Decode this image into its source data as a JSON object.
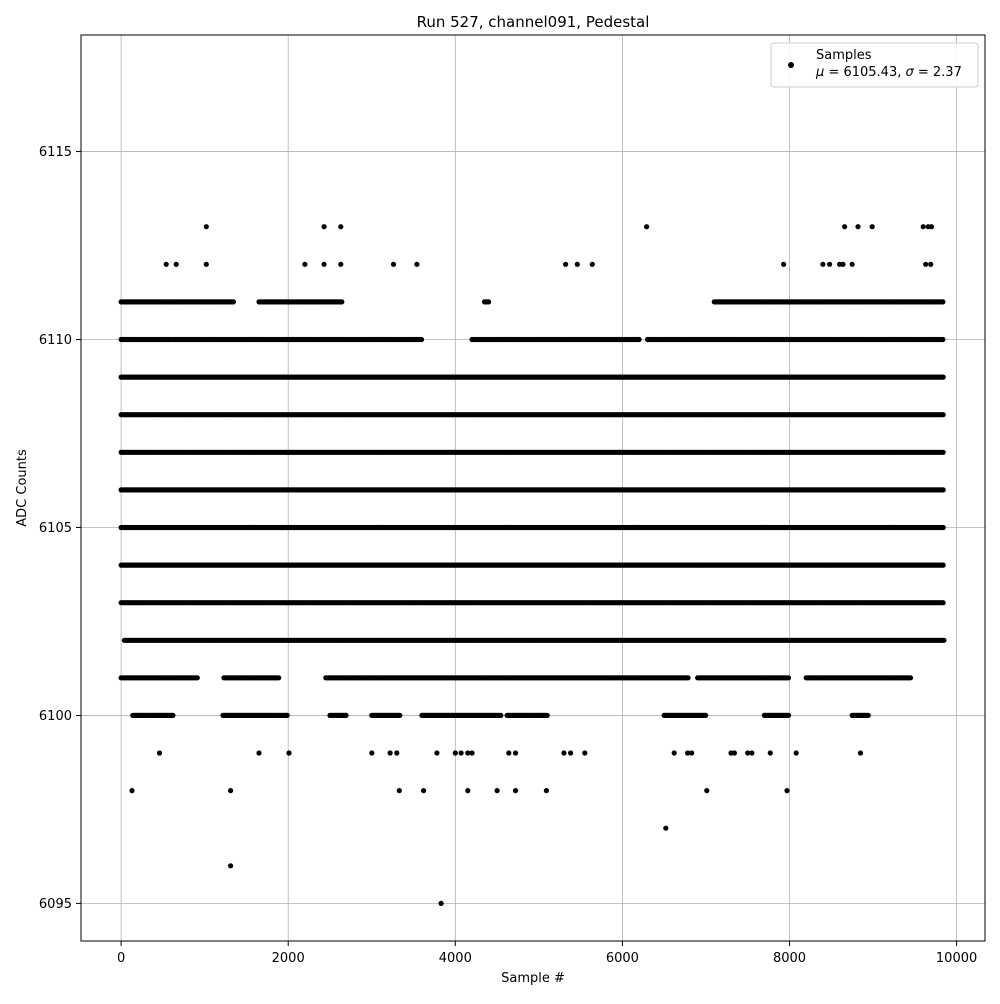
{
  "chart_data": {
    "type": "scatter",
    "title": "Run 527, channel091, Pedestal",
    "xlabel": "Sample #",
    "ylabel": "ADC Counts",
    "xlim": [
      -480,
      10340
    ],
    "ylim": [
      6094,
      6118.1
    ],
    "xticks": [
      0,
      2000,
      4000,
      6000,
      8000,
      10000
    ],
    "xtick_labels": [
      "0",
      "2000",
      "4000",
      "6000",
      "8000",
      "10000"
    ],
    "yticks": [
      6095,
      6100,
      6105,
      6110,
      6115
    ],
    "ytick_labels": [
      "6095",
      "6100",
      "6105",
      "6110",
      "6115"
    ],
    "grid": true,
    "legend_position": "top-right",
    "legend": {
      "entry": "Samples",
      "stats_mu": "6105.43",
      "stats_sigma": "2.37"
    },
    "marker_color": "#000000",
    "series": [
      {
        "name": "Samples",
        "sample_count": 10000,
        "sample_x_range": [
          0,
          9850
        ],
        "level_coverage": [
          {
            "y": 6103,
            "x_ranges": [
              [
                0,
                9850
              ]
            ]
          },
          {
            "y": 6104,
            "x_ranges": [
              [
                0,
                9850
              ]
            ]
          },
          {
            "y": 6105,
            "x_ranges": [
              [
                0,
                9850
              ]
            ]
          },
          {
            "y": 6106,
            "x_ranges": [
              [
                0,
                9850
              ]
            ]
          },
          {
            "y": 6107,
            "x_ranges": [
              [
                0,
                9850
              ]
            ]
          },
          {
            "y": 6108,
            "x_ranges": [
              [
                0,
                9850
              ]
            ]
          },
          {
            "y": 6102,
            "x_ranges": [
              [
                40,
                9850
              ]
            ]
          },
          {
            "y": 6109,
            "x_ranges": [
              [
                0,
                9850
              ]
            ]
          },
          {
            "y": 6101,
            "x_ranges": [
              [
                0,
                920
              ],
              [
                1230,
                1900
              ],
              [
                2450,
                6800
              ],
              [
                6900,
                8000
              ],
              [
                8200,
                9450
              ]
            ]
          },
          {
            "y": 6110,
            "x_ranges": [
              [
                0,
                600
              ],
              [
                620,
                3600
              ],
              [
                4200,
                6200
              ],
              [
                6300,
                9850
              ]
            ]
          },
          {
            "y": 6100,
            "x_ranges": [
              [
                140,
                620
              ],
              [
                1220,
                2000
              ],
              [
                2500,
                2700
              ],
              [
                3000,
                3350
              ],
              [
                3600,
                4550
              ],
              [
                4620,
                5100
              ],
              [
                6500,
                7000
              ],
              [
                7700,
                8000
              ],
              [
                8750,
                8950
              ]
            ]
          },
          {
            "y": 6111,
            "x_ranges": [
              [
                0,
                1350
              ],
              [
                1650,
                2650
              ],
              [
                4350,
                4400
              ],
              [
                7100,
                9850
              ]
            ]
          }
        ],
        "sparse_points": [
          {
            "x": 540,
            "y": 6112
          },
          {
            "x": 660,
            "y": 6112
          },
          {
            "x": 1020,
            "y": 6112
          },
          {
            "x": 1020,
            "y": 6113
          },
          {
            "x": 2200,
            "y": 6112
          },
          {
            "x": 2430,
            "y": 6112
          },
          {
            "x": 2430,
            "y": 6113
          },
          {
            "x": 2630,
            "y": 6112
          },
          {
            "x": 2630,
            "y": 6113
          },
          {
            "x": 3260,
            "y": 6112
          },
          {
            "x": 3540,
            "y": 6112
          },
          {
            "x": 5320,
            "y": 6112
          },
          {
            "x": 5460,
            "y": 6112
          },
          {
            "x": 5640,
            "y": 6112
          },
          {
            "x": 6290,
            "y": 6113
          },
          {
            "x": 7930,
            "y": 6112
          },
          {
            "x": 8400,
            "y": 6112
          },
          {
            "x": 8480,
            "y": 6112
          },
          {
            "x": 8600,
            "y": 6112
          },
          {
            "x": 8640,
            "y": 6112
          },
          {
            "x": 8660,
            "y": 6113
          },
          {
            "x": 8750,
            "y": 6112
          },
          {
            "x": 8820,
            "y": 6113
          },
          {
            "x": 8990,
            "y": 6113
          },
          {
            "x": 9600,
            "y": 6113
          },
          {
            "x": 9630,
            "y": 6112
          },
          {
            "x": 9660,
            "y": 6113
          },
          {
            "x": 9690,
            "y": 6112
          },
          {
            "x": 9700,
            "y": 6113
          },
          {
            "x": 460,
            "y": 6099
          },
          {
            "x": 1650,
            "y": 6099
          },
          {
            "x": 2010,
            "y": 6099
          },
          {
            "x": 3000,
            "y": 6099
          },
          {
            "x": 3220,
            "y": 6099
          },
          {
            "x": 3300,
            "y": 6099
          },
          {
            "x": 3780,
            "y": 6099
          },
          {
            "x": 4000,
            "y": 6099
          },
          {
            "x": 4070,
            "y": 6099
          },
          {
            "x": 4150,
            "y": 6099
          },
          {
            "x": 4200,
            "y": 6099
          },
          {
            "x": 4640,
            "y": 6099
          },
          {
            "x": 4720,
            "y": 6099
          },
          {
            "x": 5300,
            "y": 6099
          },
          {
            "x": 5380,
            "y": 6099
          },
          {
            "x": 5550,
            "y": 6099
          },
          {
            "x": 6620,
            "y": 6099
          },
          {
            "x": 6780,
            "y": 6099
          },
          {
            "x": 6830,
            "y": 6099
          },
          {
            "x": 7300,
            "y": 6099
          },
          {
            "x": 7340,
            "y": 6099
          },
          {
            "x": 7500,
            "y": 6099
          },
          {
            "x": 7550,
            "y": 6099
          },
          {
            "x": 7770,
            "y": 6099
          },
          {
            "x": 8080,
            "y": 6099
          },
          {
            "x": 8850,
            "y": 6099
          },
          {
            "x": 130,
            "y": 6098
          },
          {
            "x": 1310,
            "y": 6098
          },
          {
            "x": 3330,
            "y": 6098
          },
          {
            "x": 3620,
            "y": 6098
          },
          {
            "x": 4150,
            "y": 6098
          },
          {
            "x": 4500,
            "y": 6098
          },
          {
            "x": 4720,
            "y": 6098
          },
          {
            "x": 5090,
            "y": 6098
          },
          {
            "x": 7010,
            "y": 6098
          },
          {
            "x": 7970,
            "y": 6098
          },
          {
            "x": 6520,
            "y": 6097
          },
          {
            "x": 1310,
            "y": 6096
          },
          {
            "x": 3830,
            "y": 6095
          }
        ]
      }
    ]
  }
}
